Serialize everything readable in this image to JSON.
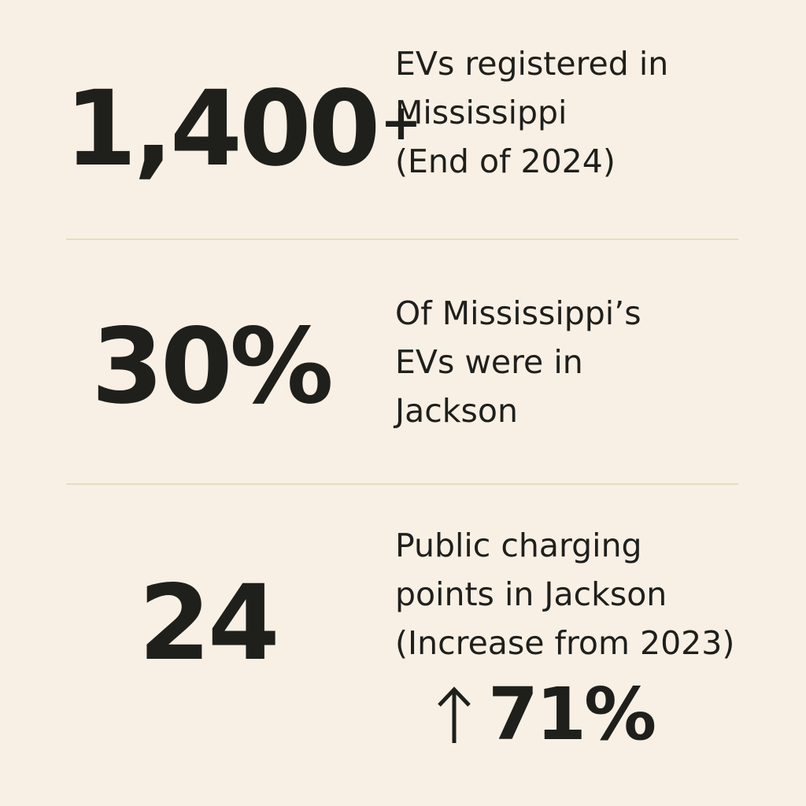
{
  "stats": [
    {
      "value": "1,400",
      "value_suffix": "+",
      "description": [
        "EVs registered in",
        "Mississippi",
        "(End of 2024)"
      ]
    },
    {
      "value": "30%",
      "description": [
        "Of Mississippi’s",
        "EVs were in",
        "Jackson"
      ]
    },
    {
      "value": "24",
      "description": [
        "Public charging",
        "points in Jackson",
        "(Increase from 2023)"
      ],
      "change": {
        "icon": "arrow-up-icon",
        "value": "71%"
      }
    }
  ],
  "colors": {
    "background": "#f8f0e4",
    "text": "#1f1f1c",
    "divider": "#e7dcc3"
  }
}
